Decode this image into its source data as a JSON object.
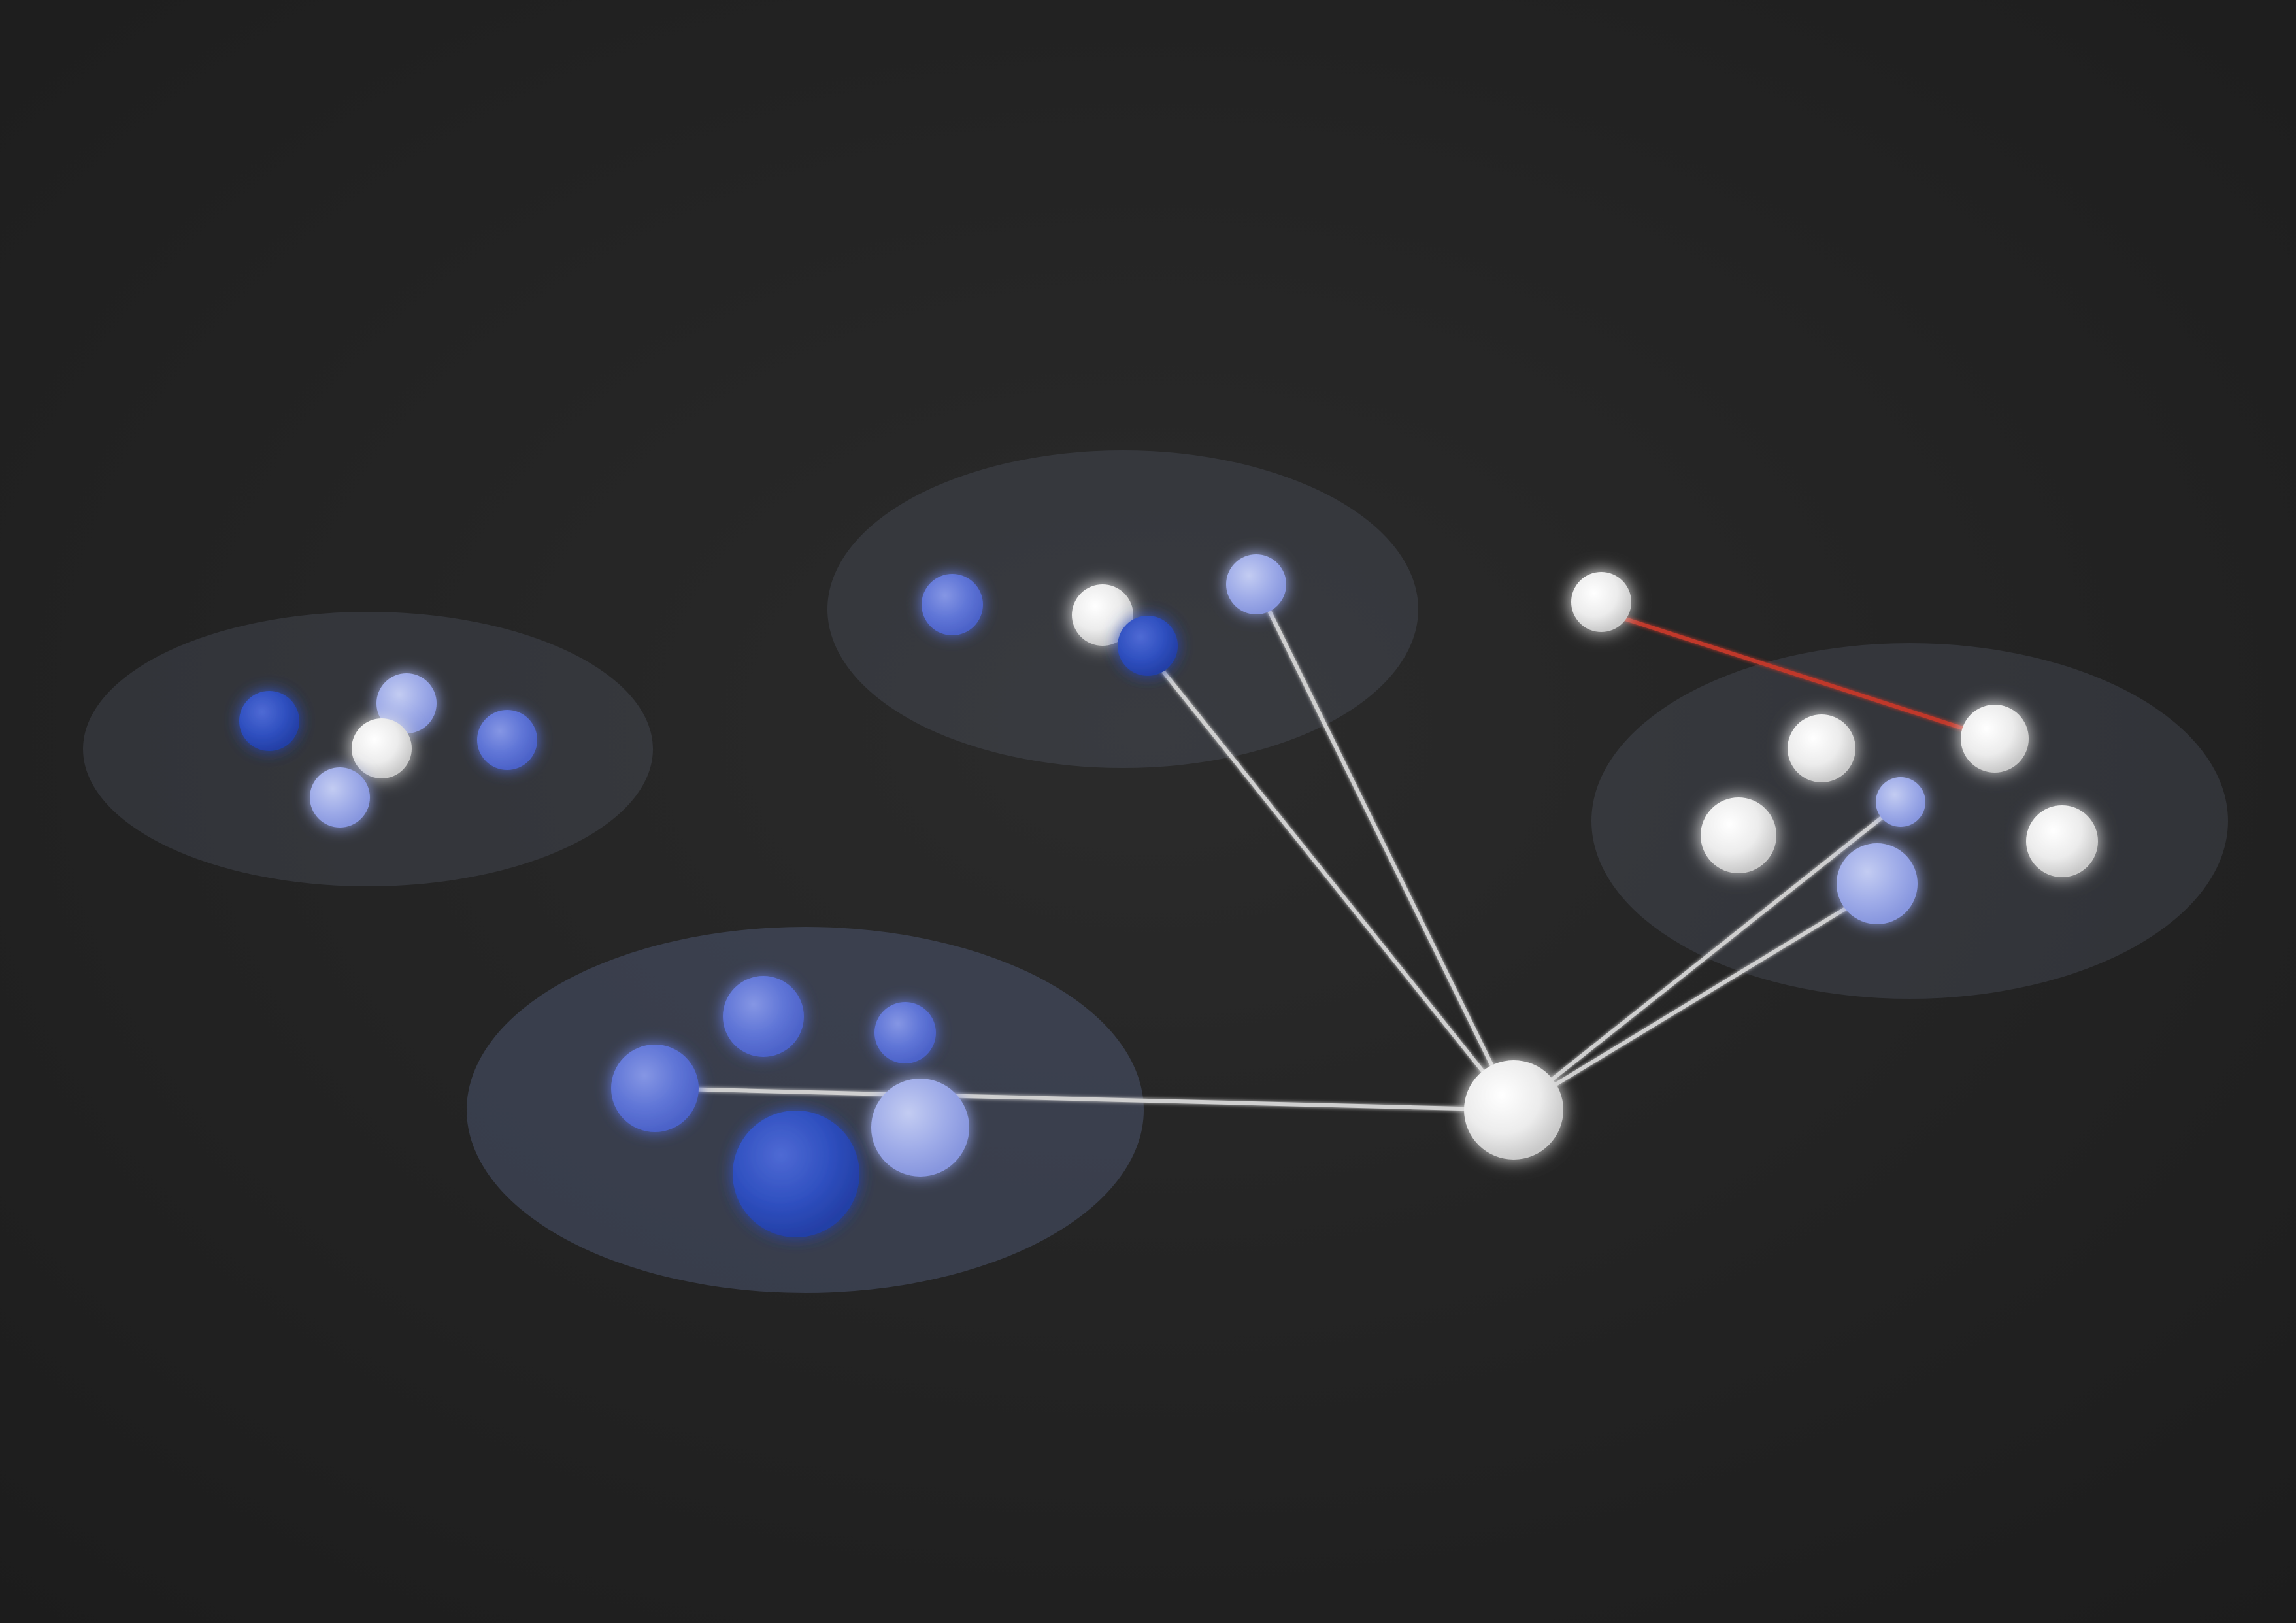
{
  "colors": {
    "background_center": "#2a2a2a",
    "background_edge": "#1d1d1d",
    "cluster_fill": "#5c6478",
    "white_node": "#f2f2f2",
    "light_blue_node": "#98a6e6",
    "mid_blue_node": "#5a72d6",
    "dark_blue_node": "#2f50c0",
    "link_line": "#c8c8c8",
    "highlight_link": "#c0392b"
  },
  "clusters": [
    {
      "id": "cluster-left",
      "nodes": [
        "dark-blue",
        "light-blue",
        "white",
        "light-blue",
        "mid-blue"
      ]
    },
    {
      "id": "cluster-top",
      "nodes": [
        "mid-blue",
        "white",
        "dark-blue",
        "light-blue"
      ]
    },
    {
      "id": "cluster-bottom",
      "nodes": [
        "mid-blue",
        "mid-blue",
        "mid-blue",
        "dark-blue",
        "light-blue"
      ]
    },
    {
      "id": "cluster-right",
      "nodes": [
        "white",
        "white",
        "white",
        "white",
        "light-blue",
        "light-blue"
      ]
    }
  ],
  "hub_node": "white",
  "hub_connections": 5,
  "isolated_node": "white",
  "highlight_connection": {
    "from": "isolated-node",
    "to": "cluster-right",
    "color": "#c0392b"
  }
}
